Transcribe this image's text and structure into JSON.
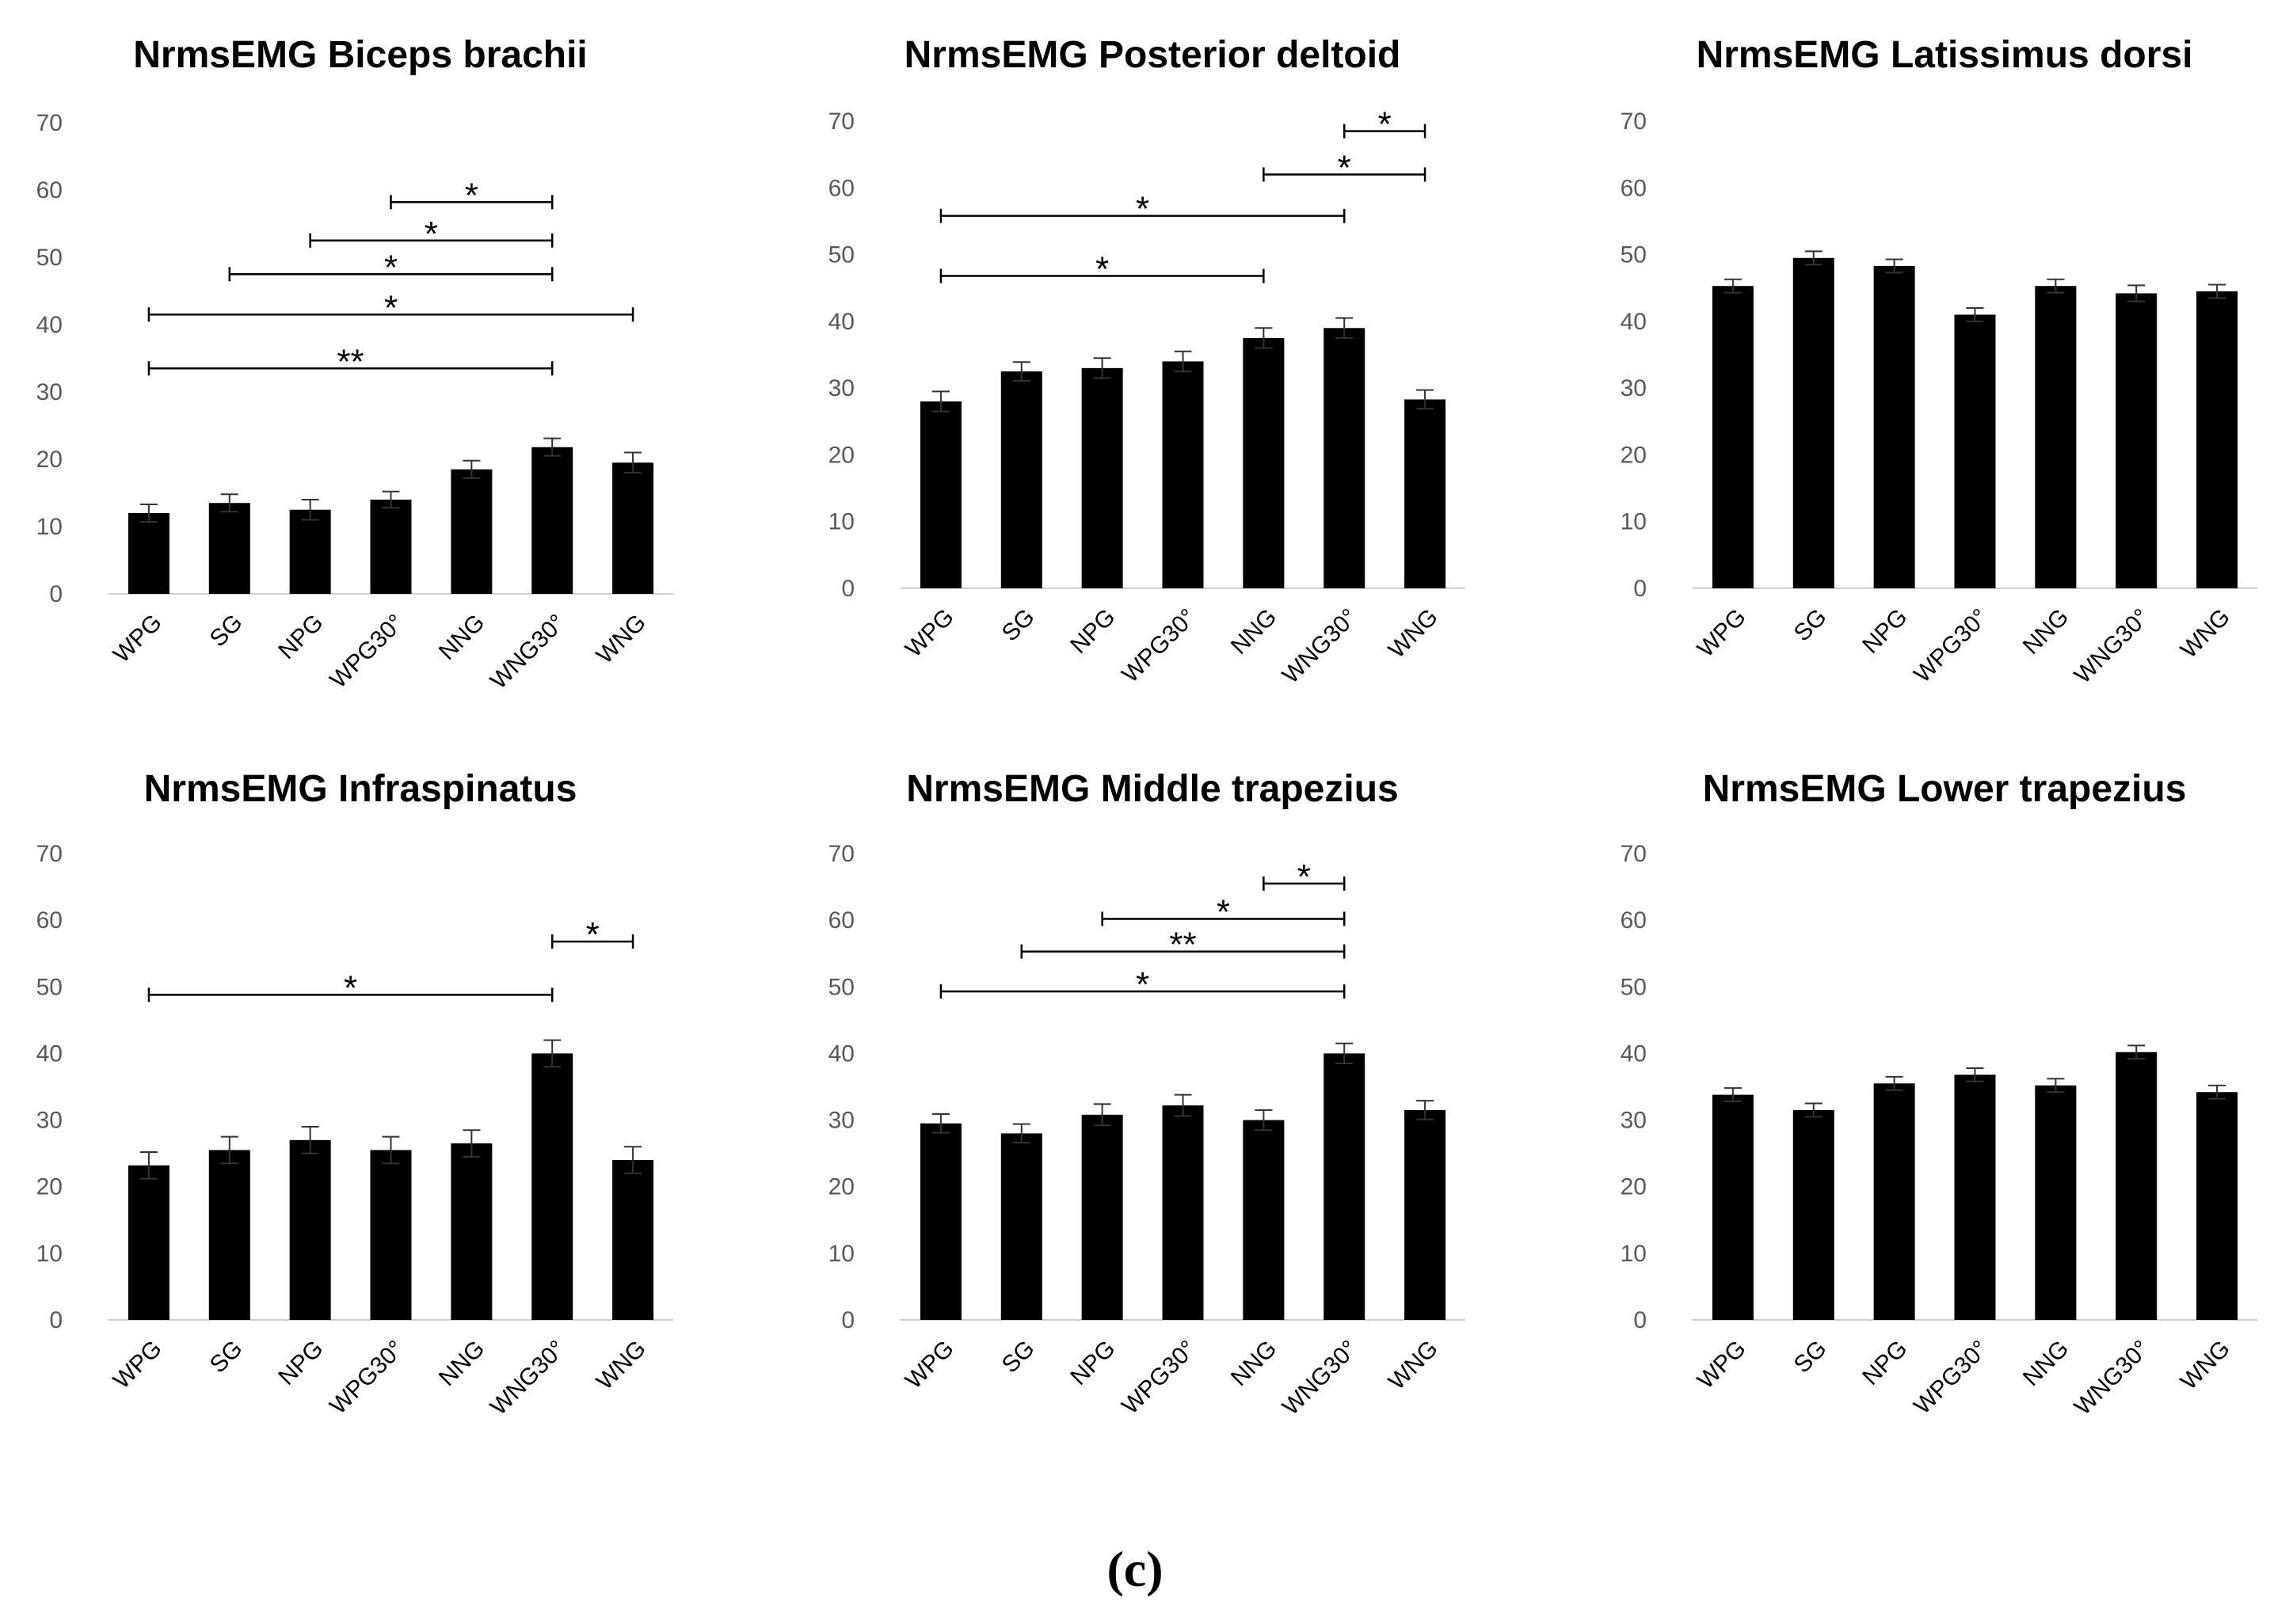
{
  "caption": "(c)",
  "chart_data": [
    {
      "type": "bar",
      "title": "NrmsEMG Biceps brachii",
      "categories": [
        "WPG",
        "SG",
        "NPG",
        "WPG30°",
        "NNG",
        "WNG30°",
        "WNG"
      ],
      "values": [
        12,
        13.5,
        12.5,
        14,
        18.5,
        21.8,
        19.5
      ],
      "errors": [
        1.3,
        1.3,
        1.5,
        1.2,
        1.3,
        1.3,
        1.5
      ],
      "ylim": [
        0,
        70
      ],
      "yticks": [
        0,
        10,
        20,
        30,
        40,
        50,
        60,
        70
      ],
      "xlabel": "",
      "ylabel": "",
      "significance": [
        {
          "from": "WPG",
          "to": "WNG30°",
          "y": 33.5,
          "label": "**"
        },
        {
          "from": "WPG",
          "to": "WNG",
          "y": 41.5,
          "label": "*"
        },
        {
          "from": "SG",
          "to": "WNG30°",
          "y": 47.5,
          "label": "*"
        },
        {
          "from": "NPG",
          "to": "WNG30°",
          "y": 52.5,
          "label": "*"
        },
        {
          "from": "WPG30°",
          "to": "WNG30°",
          "y": 58.2,
          "label": "*"
        }
      ]
    },
    {
      "type": "bar",
      "title": "NrmsEMG Posterior deltoid",
      "categories": [
        "WPG",
        "SG",
        "NPG",
        "WPG30°",
        "NNG",
        "WNG30°",
        "WNG"
      ],
      "values": [
        28,
        32.5,
        33,
        34,
        37.5,
        39,
        28.3
      ],
      "errors": [
        1.5,
        1.4,
        1.5,
        1.5,
        1.5,
        1.5,
        1.4
      ],
      "ylim": [
        0,
        70
      ],
      "yticks": [
        0,
        10,
        20,
        30,
        40,
        50,
        60,
        70
      ],
      "xlabel": "",
      "ylabel": "",
      "significance": [
        {
          "from": "WPG",
          "to": "NNG",
          "y": 46.8,
          "label": "*"
        },
        {
          "from": "WPG",
          "to": "WNG30°",
          "y": 55.8,
          "label": "*"
        },
        {
          "from": "NNG",
          "to": "WNG",
          "y": 62,
          "label": "*"
        },
        {
          "from": "WNG30°",
          "to": "WNG",
          "y": 68.5,
          "label": "*"
        }
      ]
    },
    {
      "type": "bar",
      "title": "NrmsEMG Latissimus dorsi",
      "categories": [
        "WPG",
        "SG",
        "NPG",
        "WPG30°",
        "NNG",
        "WNG30°",
        "WNG"
      ],
      "values": [
        45.3,
        49.5,
        48.3,
        41,
        45.3,
        44.2,
        44.5
      ],
      "errors": [
        1,
        1,
        1,
        1,
        1,
        1.2,
        1
      ],
      "ylim": [
        0,
        70
      ],
      "yticks": [
        0,
        10,
        20,
        30,
        40,
        50,
        60,
        70
      ],
      "xlabel": "",
      "ylabel": "",
      "significance": []
    },
    {
      "type": "bar",
      "title": "NrmsEMG Infraspinatus",
      "categories": [
        "WPG",
        "SG",
        "NPG",
        "WPG30°",
        "NNG",
        "WNG30°",
        "WNG"
      ],
      "values": [
        23.2,
        25.5,
        27,
        25.5,
        26.5,
        40,
        24
      ],
      "errors": [
        2,
        2,
        2,
        2,
        2,
        2,
        2
      ],
      "ylim": [
        0,
        70
      ],
      "yticks": [
        0,
        10,
        20,
        30,
        40,
        50,
        60,
        70
      ],
      "xlabel": "",
      "ylabel": "",
      "significance": [
        {
          "from": "WPG",
          "to": "WNG30°",
          "y": 48.8,
          "label": "*"
        },
        {
          "from": "WNG30°",
          "to": "WNG",
          "y": 56.8,
          "label": "*"
        }
      ]
    },
    {
      "type": "bar",
      "title": "NrmsEMG Middle trapezius",
      "categories": [
        "WPG",
        "SG",
        "NPG",
        "WPG30°",
        "NNG",
        "WNG30°",
        "WNG"
      ],
      "values": [
        29.5,
        28,
        30.8,
        32.2,
        30,
        40,
        31.5
      ],
      "errors": [
        1.4,
        1.4,
        1.6,
        1.6,
        1.5,
        1.5,
        1.4
      ],
      "ylim": [
        0,
        70
      ],
      "yticks": [
        0,
        10,
        20,
        30,
        40,
        50,
        60,
        70
      ],
      "xlabel": "",
      "ylabel": "",
      "significance": [
        {
          "from": "WPG",
          "to": "WNG30°",
          "y": 49.3,
          "label": "*"
        },
        {
          "from": "SG",
          "to": "WNG30°",
          "y": 55.3,
          "label": "**"
        },
        {
          "from": "NPG",
          "to": "WNG30°",
          "y": 60.2,
          "label": "*"
        },
        {
          "from": "NNG",
          "to": "WNG30°",
          "y": 65.5,
          "label": "*"
        }
      ]
    },
    {
      "type": "bar",
      "title": "NrmsEMG Lower trapezius",
      "categories": [
        "WPG",
        "SG",
        "NPG",
        "WPG30°",
        "NNG",
        "WNG30°",
        "WNG"
      ],
      "values": [
        33.8,
        31.5,
        35.5,
        36.8,
        35.2,
        40.2,
        34.2
      ],
      "errors": [
        1,
        1,
        1,
        1,
        1,
        1,
        1
      ],
      "ylim": [
        0,
        70
      ],
      "yticks": [
        0,
        10,
        20,
        30,
        40,
        50,
        60,
        70
      ],
      "xlabel": "",
      "ylabel": "",
      "significance": []
    }
  ]
}
